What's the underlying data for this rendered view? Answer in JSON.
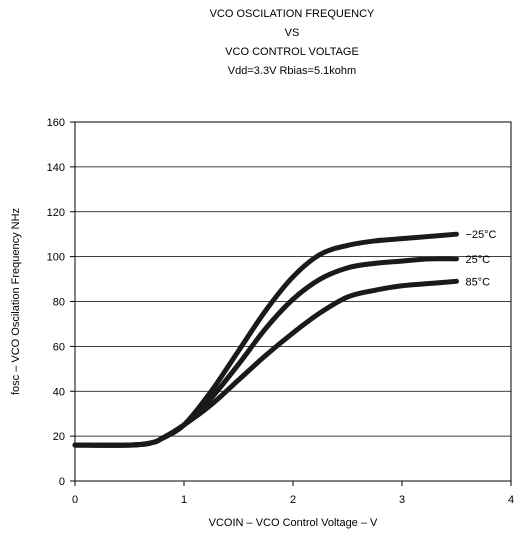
{
  "chart_data": {
    "type": "line",
    "title_lines": [
      "VCO OSCILATION FREQUENCY",
      "VS",
      "VCO CONTROL VOLTAGE",
      "Vdd=3.3V Rbias=5.1kohm"
    ],
    "xlabel": "VCOIN – VCO Control Voltage – V",
    "ylabel": "fosc – VCO Oscilation Frequency NHz",
    "xlim": [
      0,
      4
    ],
    "ylim": [
      0,
      160
    ],
    "xticks": [
      "0",
      "1",
      "2",
      "3",
      "4"
    ],
    "yticks": [
      "0",
      "20",
      "40",
      "60",
      "80",
      "100",
      "120",
      "140",
      "160"
    ],
    "grid": "horizontal",
    "line_color": "#1a1a1a",
    "series": [
      {
        "name": "−25°C",
        "x": [
          0,
          0.5,
          0.7,
          0.8,
          1.0,
          1.25,
          1.5,
          1.75,
          2.0,
          2.25,
          2.5,
          2.75,
          3.0,
          3.25,
          3.5
        ],
        "y": [
          16,
          16,
          17,
          19,
          25,
          40,
          58,
          76,
          91,
          101,
          105,
          107,
          108,
          109,
          110
        ]
      },
      {
        "name": "25°C",
        "x": [
          0,
          0.5,
          0.7,
          0.8,
          1.0,
          1.25,
          1.5,
          1.75,
          2.0,
          2.25,
          2.5,
          2.75,
          3.0,
          3.25,
          3.5
        ],
        "y": [
          16,
          16,
          17,
          19,
          25,
          37,
          52,
          68,
          81,
          90,
          95,
          97,
          98,
          99,
          99
        ]
      },
      {
        "name": "85°C",
        "x": [
          0,
          0.5,
          0.7,
          0.8,
          1.0,
          1.25,
          1.5,
          1.75,
          2.0,
          2.25,
          2.5,
          2.75,
          3.0,
          3.25,
          3.5
        ],
        "y": [
          16,
          16,
          17,
          19,
          25,
          34,
          45,
          56,
          66,
          75,
          82,
          85,
          87,
          88,
          89
        ]
      }
    ]
  }
}
